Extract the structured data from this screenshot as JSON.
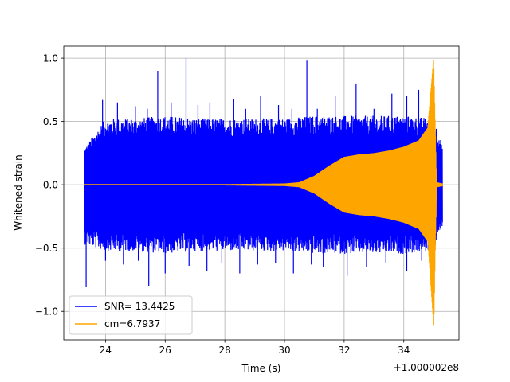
{
  "chart_data": {
    "type": "line",
    "title": "",
    "xlabel": "Time (s)",
    "ylabel": "Whitened strain",
    "x_offset_label": "+1.000002e8",
    "xlim": [
      22.6,
      35.85
    ],
    "ylim": [
      -1.225,
      1.095
    ],
    "xticks": [
      24,
      26,
      28,
      30,
      32,
      34
    ],
    "yticks": [
      -1.0,
      -0.5,
      0.0,
      0.5,
      1.0
    ],
    "ytick_labels": [
      "−1.0",
      "−0.5",
      "0.0",
      "0.5",
      "1.0"
    ],
    "grid": true,
    "legend_position": "lower-left",
    "series": [
      {
        "name": "SNR= 13.4425",
        "color": "#0000ff",
        "x_range": [
          23.3,
          35.3
        ],
        "envelope_x": [
          23.3,
          24,
          25,
          26,
          27,
          28,
          29,
          30,
          31,
          32,
          33,
          34,
          35,
          35.3
        ],
        "envelope_upper": [
          0.28,
          0.5,
          0.5,
          0.52,
          0.5,
          0.5,
          0.5,
          0.5,
          0.52,
          0.52,
          0.52,
          0.52,
          0.5,
          0.3
        ],
        "envelope_lower": [
          -0.45,
          -0.5,
          -0.5,
          -0.52,
          -0.5,
          -0.5,
          -0.5,
          -0.5,
          -0.52,
          -0.52,
          -0.52,
          -0.52,
          -0.5,
          -0.3
        ],
        "peaks": [
          [
            23.9,
            0.67
          ],
          [
            24.4,
            0.65
          ],
          [
            25.0,
            0.62
          ],
          [
            25.4,
            0.6
          ],
          [
            25.75,
            0.9
          ],
          [
            26.2,
            0.65
          ],
          [
            26.7,
            1.0
          ],
          [
            27.1,
            0.63
          ],
          [
            27.5,
            0.65
          ],
          [
            28.3,
            0.68
          ],
          [
            28.7,
            0.6
          ],
          [
            29.2,
            0.7
          ],
          [
            29.8,
            0.63
          ],
          [
            30.25,
            0.6
          ],
          [
            30.75,
            0.98
          ],
          [
            31.1,
            0.6
          ],
          [
            31.7,
            0.7
          ],
          [
            32.4,
            0.8
          ],
          [
            33.0,
            0.6
          ],
          [
            33.6,
            0.72
          ],
          [
            34.1,
            0.7
          ],
          [
            34.5,
            0.75
          ],
          [
            23.35,
            -0.81
          ],
          [
            24.0,
            -0.6
          ],
          [
            24.6,
            -0.63
          ],
          [
            25.1,
            -0.6
          ],
          [
            25.45,
            -0.8
          ],
          [
            26.0,
            -0.7
          ],
          [
            26.8,
            -0.64
          ],
          [
            27.4,
            -0.68
          ],
          [
            27.9,
            -0.62
          ],
          [
            28.5,
            -0.7
          ],
          [
            29.1,
            -0.63
          ],
          [
            29.7,
            -0.62
          ],
          [
            30.3,
            -0.7
          ],
          [
            30.9,
            -0.63
          ],
          [
            31.3,
            -0.65
          ],
          [
            32.1,
            -0.72
          ],
          [
            32.75,
            -0.65
          ],
          [
            33.4,
            -0.62
          ],
          [
            34.1,
            -0.68
          ],
          [
            34.6,
            -0.6
          ]
        ]
      },
      {
        "name": "cm=6.7937",
        "color": "#ffa500",
        "x_range": [
          23.3,
          35.3
        ],
        "envelope_x": [
          23.3,
          28.0,
          30.0,
          30.5,
          31.0,
          31.5,
          32.0,
          32.5,
          33.0,
          33.5,
          34.0,
          34.5,
          34.8,
          35.0,
          35.05,
          35.1,
          35.3
        ],
        "envelope_upper": [
          0.005,
          0.005,
          0.01,
          0.02,
          0.07,
          0.15,
          0.22,
          0.24,
          0.25,
          0.27,
          0.3,
          0.35,
          0.45,
          1.0,
          0.5,
          0.02,
          0.01
        ],
        "envelope_lower": [
          -0.005,
          -0.005,
          -0.01,
          -0.02,
          -0.07,
          -0.15,
          -0.22,
          -0.24,
          -0.25,
          -0.27,
          -0.3,
          -0.35,
          -0.45,
          -1.13,
          -0.5,
          -0.02,
          -0.01
        ]
      }
    ]
  }
}
